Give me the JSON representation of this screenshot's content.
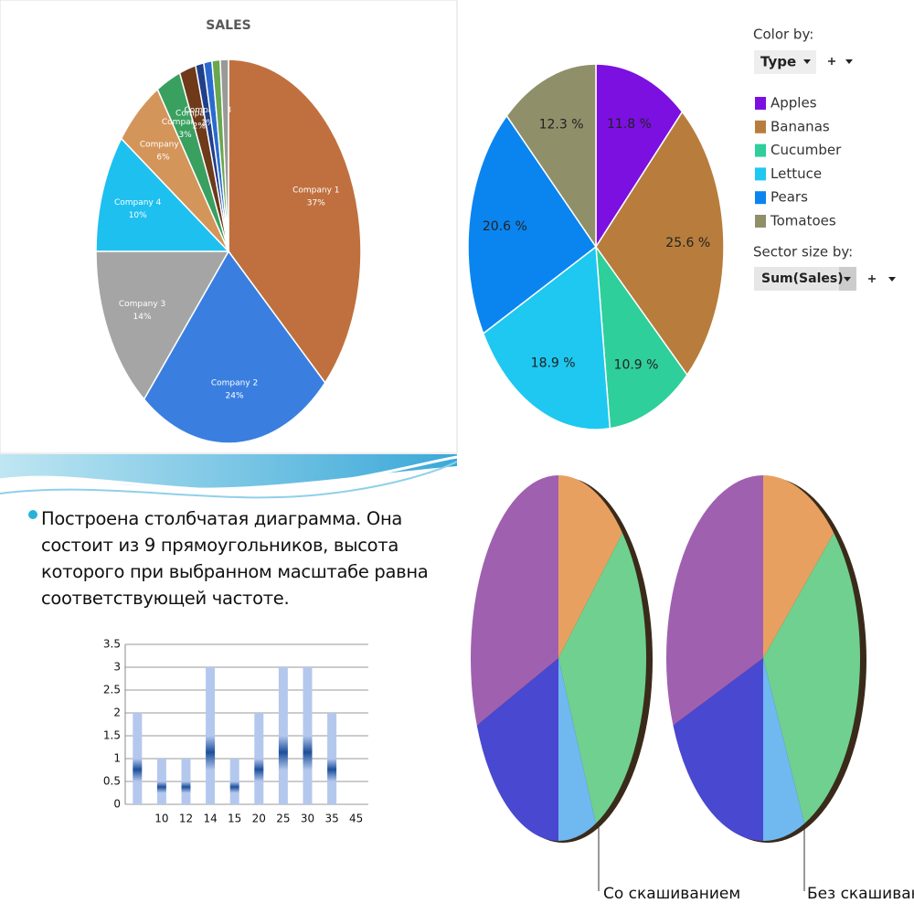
{
  "chart_data": [
    {
      "type": "pie",
      "title": "SALES",
      "categories": [
        "Company 1",
        "Company 2",
        "Company 3",
        "Company 4",
        "Company 5",
        "Company 6",
        "Company 7",
        "Company 8",
        null,
        null,
        null
      ],
      "values": [
        37,
        24,
        14,
        10,
        6,
        3,
        2,
        1,
        1,
        1,
        1
      ],
      "value_labels": [
        "37%",
        "24%",
        "14%",
        "10%",
        "6%",
        "3%",
        "2%",
        "1%",
        null,
        null,
        null
      ],
      "colors": [
        "#c0703f",
        "#3a7fe0",
        "#a5a5a5",
        "#1ec0f0",
        "#d4955a",
        "#3aa060",
        "#6e3a1a",
        "#1f3f8a",
        "#2a6ad0",
        "#6aa84f",
        "#999999"
      ]
    },
    {
      "type": "pie",
      "categories": [
        "Apples",
        "Bananas",
        "Cucumber",
        "Lettuce",
        "Pears",
        "Tomatoes"
      ],
      "values": [
        11.8,
        25.6,
        10.9,
        18.9,
        20.6,
        12.3
      ],
      "value_labels": [
        "11.8 %",
        "25.6 %",
        "10.9 %",
        "18.9 %",
        "20.6 %",
        "12.3 %"
      ],
      "colors": [
        "#7b10e0",
        "#b87d3c",
        "#2ecf9a",
        "#1ec8f0",
        "#0a85f0",
        "#8f8f6a"
      ],
      "color_by_label": "Color by:",
      "color_by_value": "Type",
      "size_by_label": "Sector size by:",
      "size_by_value": "Sum(Sales)"
    },
    {
      "type": "bar",
      "text": "Построена столбчатая диаграмма. Она состоит из 9 прямоугольников, высота которого при  выбранном масштабе равна соответствующей частоте.",
      "categories": [
        null,
        10,
        12,
        14,
        15,
        20,
        25,
        30,
        35,
        45
      ],
      "values": [
        2,
        1,
        1,
        3,
        1,
        2,
        3,
        3,
        2,
        null
      ],
      "color": "#b4c8ee",
      "ylim": [
        0,
        3.5
      ],
      "yticks": [
        0,
        0.5,
        1,
        1.5,
        2,
        2.5,
        3,
        3.5
      ],
      "grid": true
    },
    {
      "type": "pie3d",
      "values": [
        13,
        30,
        7,
        19,
        31
      ],
      "colors": [
        "#e8a060",
        "#70d090",
        "#70b8f0",
        "#4848d0",
        "#a060b0"
      ],
      "annotations": [
        "Со скашиванием",
        "Без скашивания"
      ]
    }
  ]
}
